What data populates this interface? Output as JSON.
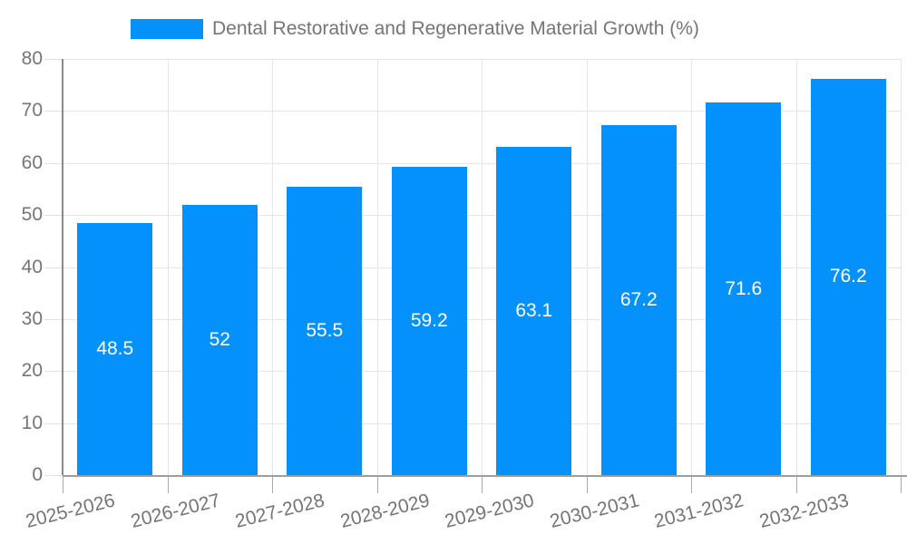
{
  "chart_data": {
    "type": "bar",
    "title": "Dental Restorative and Regenerative Material Growth (%)",
    "legend": {
      "position": "top",
      "entries": [
        "Dental Restorative and Regenerative Material Growth (%)"
      ]
    },
    "categories": [
      "2025-2026",
      "2026-2027",
      "2027-2028",
      "2028-2029",
      "2029-2030",
      "2030-2031",
      "2031-2032",
      "2032-2033"
    ],
    "series": [
      {
        "name": "Dental Restorative and Regenerative Material Growth (%)",
        "values": [
          48.5,
          52,
          55.5,
          59.2,
          63.1,
          67.2,
          71.6,
          76.2
        ],
        "value_labels": [
          "48.5",
          "52",
          "55.5",
          "59.2",
          "63.1",
          "67.2",
          "71.6",
          "76.2"
        ],
        "color": "#0591fb"
      }
    ],
    "xlabel": "",
    "ylabel": "",
    "ylim": [
      0,
      80
    ],
    "yticks": [
      0,
      10,
      20,
      30,
      40,
      50,
      60,
      70,
      80
    ],
    "grid": true,
    "x_label_rotation_deg": -14,
    "value_label_position": "inside-center"
  },
  "colors": {
    "bar": "#0591fb",
    "gridline": "#e6e6e6",
    "y_axis_line": "#8a8a8a",
    "x_axis_line": "#9e9e9e",
    "axis_text": "#757575",
    "value_text": "#ffffff",
    "background": "#ffffff"
  }
}
